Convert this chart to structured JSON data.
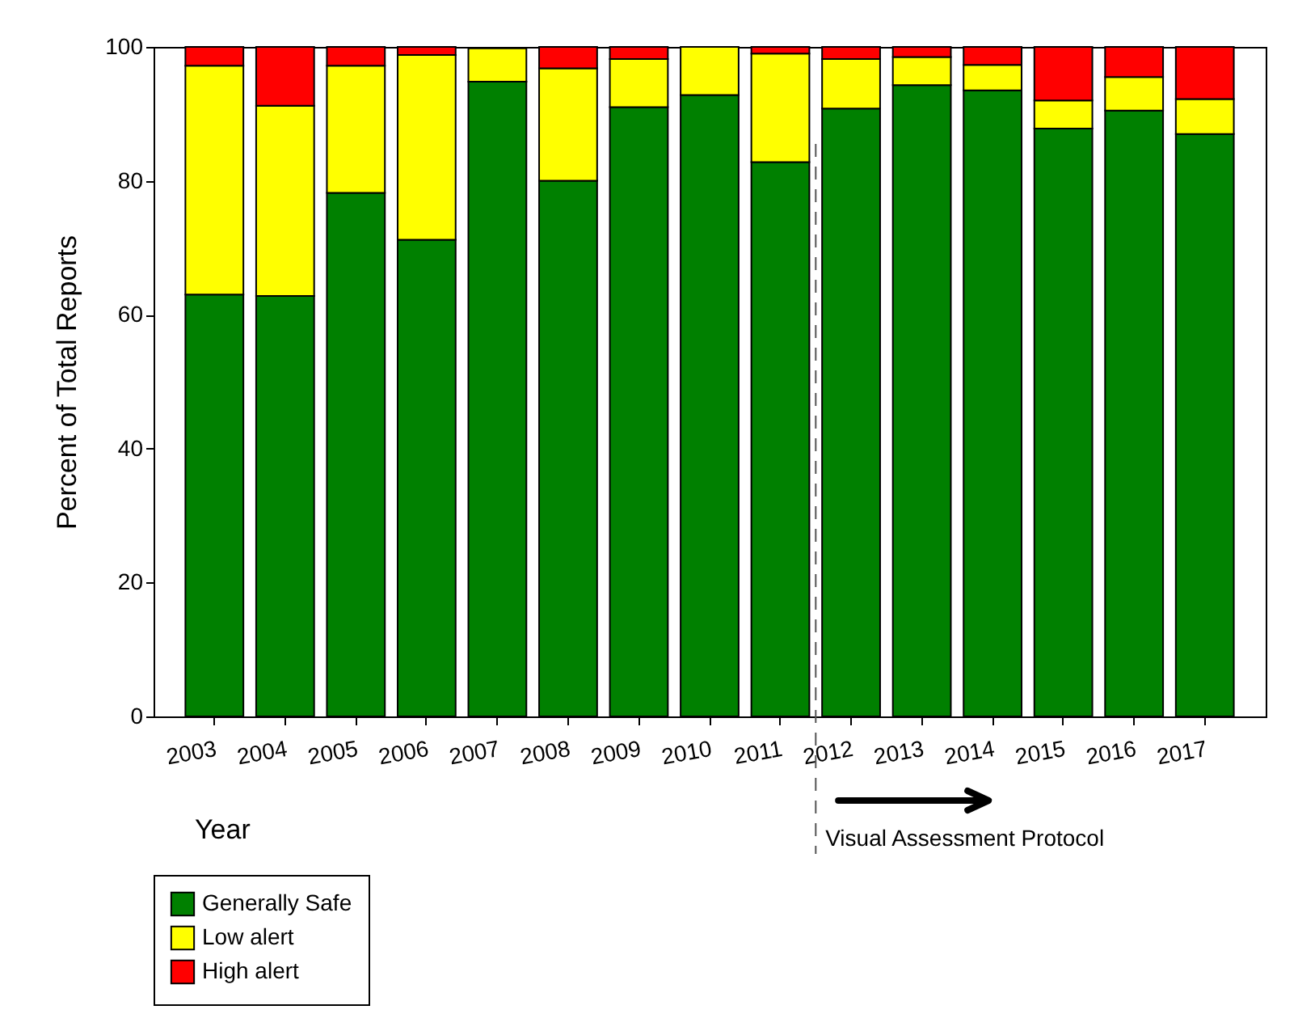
{
  "chart_data": {
    "type": "bar",
    "xlabel": "Year",
    "ylabel": "Percent of Total Reports",
    "categories": [
      "2003",
      "2004",
      "2005",
      "2006",
      "2007",
      "2008",
      "2009",
      "2010",
      "2011",
      "2012",
      "2013",
      "2014",
      "2015",
      "2016",
      "2017"
    ],
    "stacked": true,
    "series": [
      {
        "name": "Generally Safe",
        "color": "#008000",
        "values": [
          63,
          62.8,
          78.2,
          71.2,
          94.8,
          80,
          91,
          92.8,
          82.8,
          90.8,
          94.3,
          93.5,
          87.8,
          90.5,
          87
        ]
      },
      {
        "name": "Low alert",
        "color": "#ffff00",
        "values": [
          34.2,
          28.4,
          19,
          27.6,
          5,
          16.8,
          7.2,
          7.2,
          16.2,
          7.4,
          4.2,
          3.8,
          4.2,
          5,
          5.2
        ]
      },
      {
        "name": "High alert",
        "color": "#ff0000",
        "values": [
          2.8,
          8.8,
          2.8,
          1.2,
          null,
          3.2,
          1.8,
          null,
          1,
          1.8,
          1.5,
          2.7,
          8,
          4.5,
          7.8
        ]
      }
    ],
    "ylim": [
      0,
      100
    ],
    "yticks": [
      0,
      20,
      40,
      60,
      80,
      100
    ],
    "ref_lines": [
      {
        "axis": "x",
        "value": "2012",
        "label": "Visual Assessment Protocol",
        "line_style": "dashed"
      }
    ],
    "legend": "bottom left",
    "grid": false
  }
}
